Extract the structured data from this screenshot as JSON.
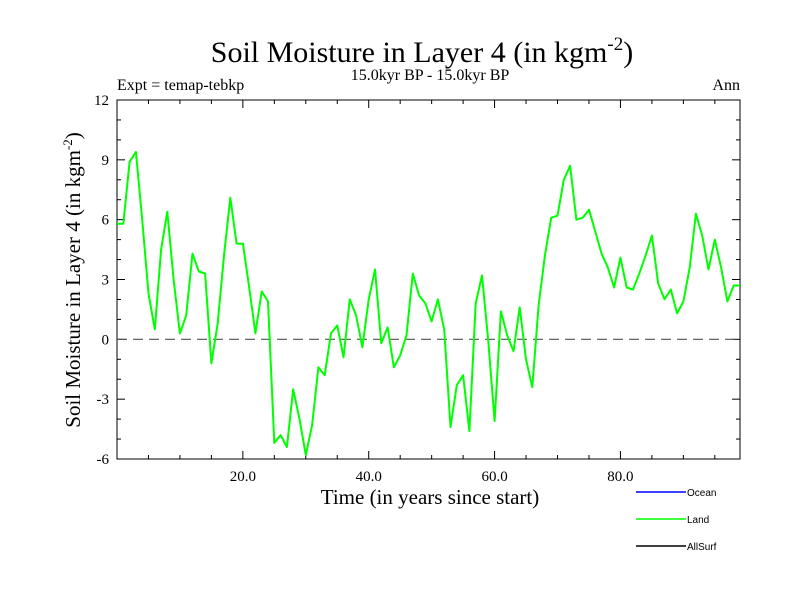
{
  "chart_data": {
    "type": "line",
    "title": "Soil Moisture in Layer 4 (in kgm",
    "title_sup": "-2",
    "title_close": ")",
    "subtitle_left": "Expt = temap-tebkp",
    "subtitle_center": "15.0kyr BP - 15.0kyr BP",
    "subtitle_right": "Ann",
    "xlabel": "Time (in years since start)",
    "ylabel": "Soil Moisture in Layer 4 (in kgm",
    "ylabel_sup": "-2",
    "ylabel_close": ")",
    "xlim": [
      0,
      99
    ],
    "ylim": [
      -6,
      12
    ],
    "xticks": [
      20,
      40,
      60,
      80
    ],
    "xtick_labels": [
      "20.0",
      "40.0",
      "60.0",
      "80.0"
    ],
    "yticks": [
      -6,
      -3,
      0,
      3,
      6,
      9,
      12
    ],
    "ytick_labels": [
      "-6",
      "-3",
      "0",
      "3",
      "6",
      "9",
      "12"
    ],
    "zero_line": 0,
    "colors": {
      "Ocean": "#0000ff",
      "Land": "#00ff00",
      "AllSurf": "#000000",
      "zero": "#555555"
    },
    "legend": [
      "Ocean",
      "Land",
      "AllSurf"
    ],
    "series": [
      {
        "name": "Land",
        "x": [
          0,
          1,
          2,
          3,
          4,
          5,
          6,
          7,
          8,
          9,
          10,
          11,
          12,
          13,
          14,
          15,
          16,
          17,
          18,
          19,
          20,
          21,
          22,
          23,
          24,
          25,
          26,
          27,
          28,
          29,
          30,
          31,
          32,
          33,
          34,
          35,
          36,
          37,
          38,
          39,
          40,
          41,
          42,
          43,
          44,
          45,
          46,
          47,
          48,
          49,
          50,
          51,
          52,
          53,
          54,
          55,
          56,
          57,
          58,
          59,
          60,
          61,
          62,
          63,
          64,
          65,
          66,
          67,
          68,
          69,
          70,
          71,
          72,
          73,
          74,
          75,
          76,
          77,
          78,
          79,
          80,
          81,
          82,
          83,
          84,
          85,
          86,
          87,
          88,
          89,
          90,
          91,
          92,
          93,
          94,
          95,
          96,
          97,
          98,
          99
        ],
        "values": [
          5.8,
          5.8,
          8.9,
          9.4,
          6.0,
          2.3,
          0.5,
          4.5,
          6.4,
          3.0,
          0.3,
          1.2,
          4.3,
          3.4,
          3.3,
          -1.2,
          0.8,
          4.2,
          7.1,
          4.8,
          4.8,
          2.6,
          0.3,
          2.4,
          1.9,
          -5.2,
          -4.8,
          -5.4,
          -2.5,
          -4.0,
          -5.8,
          -4.3,
          -1.4,
          -1.8,
          0.3,
          0.7,
          -0.9,
          2.0,
          1.2,
          -0.4,
          2.0,
          3.5,
          -0.2,
          0.6,
          -1.4,
          -0.8,
          0.2,
          3.3,
          2.2,
          1.8,
          0.9,
          2.0,
          0.5,
          -4.4,
          -2.3,
          -1.8,
          -4.6,
          1.8,
          3.2,
          -0.1,
          -4.1,
          1.4,
          0.2,
          -0.6,
          1.6,
          -1.0,
          -2.4,
          1.7,
          4.2,
          6.1,
          6.2,
          8.0,
          8.7,
          6.0,
          6.1,
          6.5,
          5.4,
          4.3,
          3.6,
          2.6,
          4.1,
          2.6,
          2.5,
          3.3,
          4.2,
          5.2,
          2.8,
          2.0,
          2.5,
          1.3,
          1.9,
          3.6,
          6.3,
          5.2,
          3.5,
          5.0,
          3.6,
          1.9,
          2.7,
          2.7
        ]
      }
    ]
  }
}
